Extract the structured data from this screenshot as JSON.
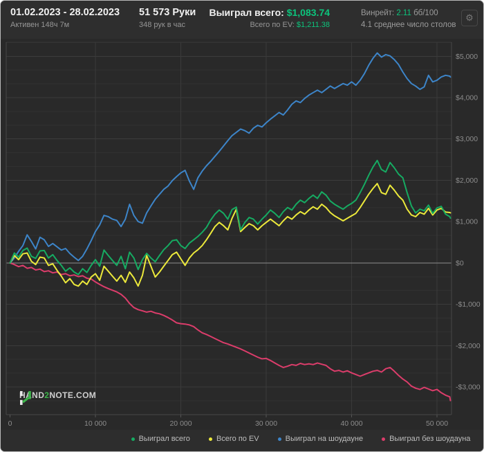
{
  "header": {
    "date_range": "01.02.2023 - 28.02.2023",
    "active_time": "Активен 148ч 7м",
    "hands": "51 573 Руки",
    "hands_per_hour": "348 рук в час",
    "won_total_label": "Выиграл всего:",
    "won_total_value": "$1,083.74",
    "ev_label": "Всего по EV:",
    "ev_value": "$1,211.38",
    "winrate_label": "Винрейт:",
    "winrate_value": "2.11",
    "winrate_suffix": "бб/100",
    "avg_tables": "4.1 среднее число столов",
    "gear_icon": "⚙"
  },
  "logo": {
    "part1": "HAND",
    "part2": "2",
    "part3": "NOTE.COM"
  },
  "colors": {
    "accent_green": "#0cc47c",
    "won_total_line": "#16ab62",
    "ev_line": "#ece93b",
    "showdown_line": "#3d85c9",
    "non_showdown_line": "#dc3d6b",
    "zero_line": "#8e8e8e"
  },
  "chart_data": {
    "type": "line",
    "title": "",
    "xlabel": "",
    "ylabel": "",
    "grid": true,
    "legend_position": "bottom",
    "xlim": [
      -450,
      51700
    ],
    "ylim": [
      -3670,
      5340
    ],
    "x_ticks": [
      0,
      10000,
      20000,
      30000,
      40000,
      50000
    ],
    "x_tick_labels": [
      "0",
      "10 000",
      "20 000",
      "30 000",
      "40 000",
      "50 000"
    ],
    "y_ticks": [
      5000,
      4000,
      3000,
      2000,
      1000,
      0,
      -1000,
      -2000,
      -3000
    ],
    "y_tick_labels": [
      "$5,000",
      "$4,000",
      "$3,000",
      "$2,000",
      "$1,000",
      "$0",
      "-$1,000",
      "-$2,000",
      "-$3,000"
    ],
    "x_step": 500,
    "x_last": 51573,
    "series": [
      {
        "id": "won-total",
        "name": "Выиграл всего",
        "color": "#16ab62",
        "last": 1084,
        "values": [
          0,
          240,
          140,
          300,
          360,
          160,
          110,
          290,
          300,
          120,
          200,
          60,
          -60,
          -200,
          -120,
          -220,
          -280,
          -140,
          -230,
          -60,
          80,
          -80,
          310,
          180,
          60,
          -60,
          160,
          -140,
          260,
          120,
          -160,
          80,
          230,
          120,
          30,
          180,
          320,
          420,
          540,
          560,
          420,
          350,
          480,
          560,
          640,
          740,
          860,
          1040,
          1180,
          1280,
          1200,
          1060,
          1290,
          1350,
          800,
          980,
          1100,
          1060,
          940,
          1060,
          1160,
          1280,
          1200,
          1100,
          1240,
          1340,
          1280,
          1420,
          1520,
          1460,
          1560,
          1640,
          1560,
          1720,
          1640,
          1500,
          1420,
          1360,
          1300,
          1380,
          1440,
          1520,
          1700,
          1900,
          2120,
          2320,
          2480,
          2260,
          2200,
          2430,
          2300,
          2150,
          2060,
          1700,
          1380,
          1210,
          1300,
          1260,
          1400,
          1200,
          1330,
          1370,
          1180,
          1120
        ]
      },
      {
        "id": "ev-total",
        "name": "Всего по EV",
        "color": "#ece93b",
        "last": 1211,
        "values": [
          0,
          180,
          80,
          220,
          240,
          40,
          -40,
          140,
          120,
          -60,
          -20,
          -180,
          -320,
          -480,
          -380,
          -520,
          -560,
          -440,
          -520,
          -340,
          -260,
          -420,
          -80,
          -200,
          -320,
          -440,
          -300,
          -470,
          -220,
          -360,
          -560,
          -300,
          180,
          -80,
          -340,
          -220,
          -80,
          60,
          200,
          260,
          100,
          -60,
          120,
          240,
          320,
          420,
          560,
          720,
          880,
          980,
          900,
          800,
          1080,
          1300,
          760,
          860,
          950,
          900,
          800,
          900,
          980,
          1060,
          980,
          900,
          1020,
          1120,
          1060,
          1160,
          1240,
          1180,
          1280,
          1360,
          1300,
          1420,
          1340,
          1220,
          1140,
          1080,
          1020,
          1080,
          1140,
          1200,
          1340,
          1500,
          1660,
          1800,
          1920,
          1700,
          1660,
          1880,
          1760,
          1620,
          1520,
          1300,
          1160,
          1120,
          1220,
          1180,
          1320,
          1160,
          1280,
          1320,
          1230,
          1220
        ]
      },
      {
        "id": "showdown",
        "name": "Выиграл на шоудауне",
        "color": "#3d85c9",
        "last": 4500,
        "values": [
          0,
          120,
          280,
          420,
          680,
          520,
          340,
          620,
          560,
          400,
          470,
          390,
          310,
          350,
          230,
          140,
          60,
          160,
          340,
          540,
          760,
          920,
          1150,
          1120,
          1060,
          1030,
          880,
          1060,
          1420,
          1150,
          1000,
          960,
          1210,
          1380,
          1540,
          1660,
          1780,
          1860,
          1990,
          2090,
          2180,
          2240,
          1980,
          1780,
          2060,
          2220,
          2350,
          2460,
          2580,
          2700,
          2830,
          2960,
          3080,
          3160,
          3240,
          3200,
          3140,
          3260,
          3330,
          3290,
          3390,
          3480,
          3560,
          3640,
          3580,
          3700,
          3840,
          3920,
          3880,
          3980,
          4060,
          4120,
          4180,
          4120,
          4200,
          4280,
          4220,
          4280,
          4340,
          4300,
          4380,
          4300,
          4420,
          4580,
          4780,
          4950,
          5080,
          4980,
          5040,
          5010,
          4920,
          4800,
          4620,
          4460,
          4340,
          4280,
          4200,
          4260,
          4540,
          4380,
          4420,
          4500,
          4540,
          4520
        ]
      },
      {
        "id": "non-showdown",
        "name": "Выиграл без шоудауна",
        "color": "#dc3d6b",
        "last": -3330,
        "values": [
          0,
          -40,
          -90,
          -60,
          -130,
          -110,
          -170,
          -150,
          -210,
          -190,
          -240,
          -220,
          -280,
          -260,
          -310,
          -290,
          -330,
          -310,
          -370,
          -390,
          -460,
          -520,
          -575,
          -620,
          -660,
          -700,
          -760,
          -850,
          -980,
          -1080,
          -1130,
          -1160,
          -1190,
          -1170,
          -1210,
          -1230,
          -1270,
          -1320,
          -1380,
          -1450,
          -1470,
          -1480,
          -1500,
          -1540,
          -1620,
          -1690,
          -1730,
          -1780,
          -1830,
          -1880,
          -1930,
          -1960,
          -2000,
          -2040,
          -2080,
          -2130,
          -2180,
          -2230,
          -2280,
          -2320,
          -2310,
          -2360,
          -2420,
          -2480,
          -2530,
          -2500,
          -2460,
          -2480,
          -2430,
          -2460,
          -2440,
          -2460,
          -2420,
          -2450,
          -2480,
          -2560,
          -2620,
          -2600,
          -2640,
          -2610,
          -2660,
          -2700,
          -2740,
          -2700,
          -2660,
          -2620,
          -2600,
          -2640,
          -2560,
          -2530,
          -2620,
          -2720,
          -2810,
          -2880,
          -2980,
          -3030,
          -3060,
          -3010,
          -3050,
          -3090,
          -3060,
          -3140,
          -3200,
          -3240
        ]
      }
    ]
  }
}
